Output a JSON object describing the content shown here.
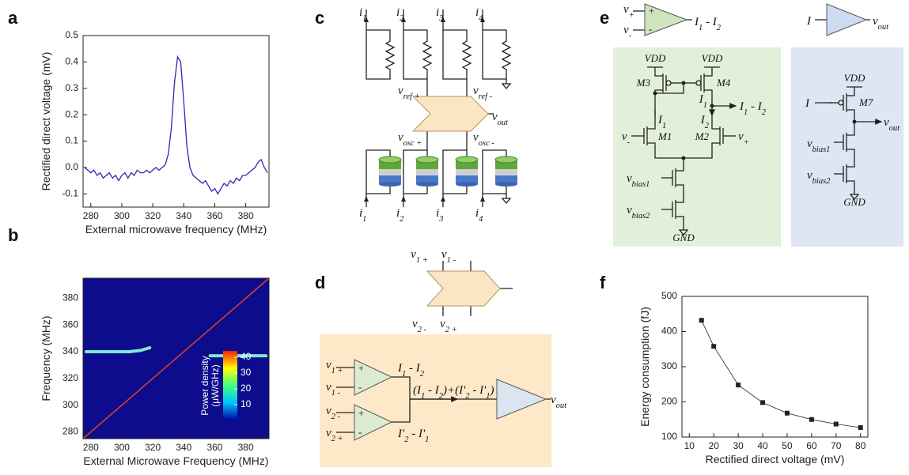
{
  "panels": [
    "a",
    "b",
    "c",
    "d",
    "e",
    "f"
  ],
  "chart_data": [
    {
      "type": "line",
      "color": "#2a2ab8",
      "x": [
        276,
        278,
        280,
        282,
        284,
        286,
        288,
        290,
        292,
        294,
        296,
        298,
        300,
        302,
        304,
        306,
        308,
        310,
        312,
        314,
        316,
        318,
        320,
        322,
        324,
        326,
        328,
        330,
        332,
        334,
        336,
        338,
        340,
        342,
        344,
        346,
        348,
        350,
        352,
        354,
        356,
        358,
        360,
        362,
        364,
        366,
        368,
        370,
        372,
        374,
        376,
        378,
        380,
        382,
        384,
        386,
        388,
        390,
        392,
        394
      ],
      "values": [
        0.0,
        -0.01,
        -0.02,
        -0.01,
        -0.03,
        -0.02,
        -0.04,
        -0.03,
        -0.02,
        -0.04,
        -0.03,
        -0.05,
        -0.03,
        -0.02,
        -0.04,
        -0.02,
        -0.03,
        -0.01,
        -0.02,
        -0.02,
        -0.01,
        -0.02,
        -0.01,
        0.0,
        -0.01,
        0.0,
        0.01,
        0.05,
        0.15,
        0.32,
        0.42,
        0.4,
        0.25,
        0.08,
        0.0,
        -0.03,
        -0.04,
        -0.05,
        -0.06,
        -0.05,
        -0.07,
        -0.09,
        -0.08,
        -0.1,
        -0.08,
        -0.06,
        -0.07,
        -0.05,
        -0.06,
        -0.04,
        -0.05,
        -0.03,
        -0.03,
        -0.02,
        -0.01,
        0.0,
        0.02,
        0.03,
        0.0,
        -0.02
      ],
      "xlim": [
        275,
        395
      ],
      "xticks": [
        280,
        300,
        320,
        340,
        360,
        380
      ],
      "ylim": [
        -0.15,
        0.5
      ],
      "yticks": [
        -0.1,
        {
          "value": 0,
          "label": "0.0"
        },
        0.1,
        0.2,
        0.3,
        0.4,
        0.5
      ],
      "xlabel": "External microwave frequency (MHz)",
      "ylabel": "Rectified direct voltage (mV)"
    },
    {
      "type": "heatmap",
      "background": "#0c0c8c",
      "series": [
        {
          "color": "#e0402a",
          "x": [
            275,
            395
          ],
          "values": [
            275,
            395
          ]
        },
        {
          "color": "#7fe8d0",
          "x": [
            277,
            290,
            305,
            312,
            318
          ],
          "values": [
            340,
            340,
            340,
            341,
            343
          ]
        },
        {
          "color": "#7fe8d0",
          "x": [
            357,
            370,
            380,
            393
          ],
          "values": [
            337,
            337,
            337,
            337
          ]
        }
      ],
      "xlim": [
        275,
        395
      ],
      "xticks": [
        280,
        300,
        320,
        340,
        360,
        380
      ],
      "ylim": [
        275,
        395
      ],
      "yticks": [
        280,
        300,
        320,
        340,
        360,
        380
      ],
      "colorbar": {
        "lim": [
          0,
          44
        ],
        "ticks": [
          10,
          20,
          30,
          40
        ],
        "label": [
          "Power density",
          "(μW/GHz)"
        ],
        "colors": [
          "#0000a0",
          "#00c0ff",
          "#40ff80",
          "#ffff00",
          "#ff2000"
        ]
      },
      "xlabel": "External Microwave Frequency (MHz)",
      "ylabel": "Frequency (MHz)"
    },
    {
      "type": "scatter",
      "line": true,
      "color": "#222222",
      "x": [
        15,
        20,
        30,
        40,
        50,
        60,
        70,
        80
      ],
      "values": [
        432,
        358,
        248,
        198,
        168,
        150,
        137,
        127
      ],
      "xlim": [
        7,
        83
      ],
      "xticks": [
        10,
        20,
        30,
        40,
        50,
        60,
        70,
        80
      ],
      "ylim": [
        100,
        500
      ],
      "yticks": [
        100,
        200,
        300,
        400,
        500
      ],
      "xlabel": "Rectified direct voltage (mV)",
      "ylabel": "Energy consumption (fJ)"
    }
  ],
  "diagrams": {
    "c": {
      "top_currents": [
        [
          "i",
          "1"
        ],
        [
          "i",
          "2"
        ],
        [
          "i",
          "3"
        ],
        [
          "i",
          "4"
        ]
      ],
      "ref_plus": [
        "v",
        "ref +"
      ],
      "ref_minus": [
        "v",
        "ref -"
      ],
      "out": [
        "v",
        "out"
      ],
      "osc_plus": [
        "v",
        "osc +"
      ],
      "osc_minus": [
        "v",
        "osc -"
      ],
      "bottom_currents": [
        [
          "i",
          "1"
        ],
        [
          "i",
          "2"
        ],
        [
          "i",
          "3"
        ],
        [
          "i",
          "4"
        ]
      ]
    },
    "d": {
      "comparator_inputs": [
        [
          "v",
          "1 +"
        ],
        [
          "v",
          "1 -"
        ],
        [
          "v",
          "2 -"
        ],
        [
          "v",
          "2 +"
        ]
      ],
      "amp_inputs": [
        [
          "v",
          "1 +"
        ],
        [
          "v",
          "1 -"
        ],
        [
          "v",
          "2 -"
        ],
        [
          "v",
          "2 +"
        ]
      ],
      "signs": [
        "+",
        "-",
        "+",
        "-"
      ],
      "diff1": [
        "I",
        "1",
        " - I",
        "2"
      ],
      "sum": [
        "(I",
        "1",
        " - I",
        "2",
        ")+(I'",
        "2",
        " - I'",
        "1",
        ")"
      ],
      "diff2": [
        "I'",
        "2",
        " - I'",
        "1"
      ],
      "out": [
        "v",
        "out"
      ]
    },
    "e": {
      "amp_inputs": [
        [
          "v",
          "+"
        ],
        [
          "v",
          "-"
        ]
      ],
      "signs": [
        "+",
        "-"
      ],
      "amp_out": [
        "I",
        "1",
        " - I",
        "2"
      ],
      "buf_in": "I",
      "buf_out": [
        "v",
        "out"
      ],
      "green": {
        "vdd": [
          "VDD",
          "VDD"
        ],
        "m3": "M3",
        "m4": "M4",
        "i1_right": [
          "I",
          "1"
        ],
        "branch_out": [
          "I",
          "1",
          " - I",
          "2"
        ],
        "i1": [
          "I",
          "1"
        ],
        "i2": [
          "I",
          "2"
        ],
        "vminus": [
          "v",
          "-"
        ],
        "m1": "M1",
        "m2": "M2",
        "vplus": [
          "v",
          "+"
        ],
        "vbias1": [
          "v",
          "bias1"
        ],
        "vbias2": [
          "v",
          "bias2"
        ],
        "gnd": "GND"
      },
      "blue": {
        "vdd": "VDD",
        "i": "I",
        "m7": "M7",
        "vout": [
          "v",
          "out"
        ],
        "vbias1": [
          "v",
          "bias1"
        ],
        "vbias2": [
          "v",
          "bias2"
        ],
        "gnd": "GND"
      }
    }
  }
}
